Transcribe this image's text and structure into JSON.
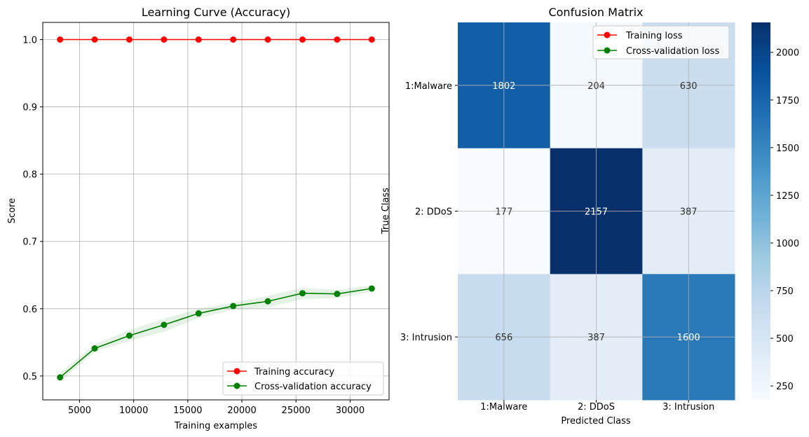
{
  "chart_data": [
    {
      "type": "line",
      "title": "Learning Curve (Accuracy)",
      "xlabel": "Training examples",
      "ylabel": "Score",
      "xlim": [
        1600,
        33600
      ],
      "ylim": [
        0.4645,
        1.0255
      ],
      "x_ticks": [
        5000,
        10000,
        15000,
        20000,
        25000,
        30000
      ],
      "y_ticks": [
        0.5,
        0.6,
        0.7,
        0.8,
        0.9,
        1.0
      ],
      "x_tick_labels": [
        "5000",
        "10000",
        "15000",
        "20000",
        "25000",
        "30000"
      ],
      "y_tick_labels": [
        "0.5",
        "0.6",
        "0.7",
        "0.8",
        "0.9",
        "1.0"
      ],
      "grid": true,
      "legend_position": "bottom-right",
      "x": [
        3200,
        6400,
        9600,
        12800,
        16000,
        19200,
        22400,
        25600,
        28800,
        32000
      ],
      "series": [
        {
          "name": "Training accuracy",
          "color": "#ff0000",
          "values": [
            1.0,
            1.0,
            1.0,
            1.0,
            1.0,
            1.0,
            1.0,
            1.0,
            1.0,
            1.0
          ]
        },
        {
          "name": "Cross-validation accuracy",
          "color": "#008000",
          "values": [
            0.498,
            0.541,
            0.56,
            0.576,
            0.593,
            0.604,
            0.611,
            0.623,
            0.622,
            0.63
          ],
          "band_lower": [
            0.492,
            0.536,
            0.552,
            0.566,
            0.586,
            0.599,
            0.602,
            0.614,
            0.616,
            0.625
          ],
          "band_upper": [
            0.505,
            0.547,
            0.568,
            0.585,
            0.6,
            0.609,
            0.619,
            0.631,
            0.628,
            0.634
          ]
        }
      ]
    },
    {
      "type": "heatmap",
      "title": "Confusion Matrix",
      "xlabel": "Predicted Class",
      "ylabel": "True Class",
      "x_categories": [
        "1:Malware",
        "2: DDoS",
        "3: Intrusion"
      ],
      "y_categories": [
        "1:Malware",
        "2: DDoS",
        "3: Intrusion"
      ],
      "values": [
        [
          1802,
          204,
          630
        ],
        [
          177,
          2157,
          387
        ],
        [
          656,
          387,
          1600
        ]
      ],
      "cell_labels": [
        [
          "1802",
          "204",
          "630"
        ],
        [
          "177",
          "2157",
          "387"
        ],
        [
          "656",
          "387",
          "1600"
        ]
      ],
      "colormap": "Blues",
      "colorbar_range": [
        177,
        2157
      ],
      "colorbar_ticks": [
        250,
        500,
        750,
        1000,
        1250,
        1500,
        1750,
        2000
      ],
      "colorbar_tick_labels": [
        "250",
        "500",
        "750",
        "1000",
        "1250",
        "1500",
        "1750",
        "2000"
      ],
      "grid": true,
      "legend_position": "top-right",
      "legend": [
        {
          "name": "Training loss",
          "color": "#ff0000"
        },
        {
          "name": "Cross-validation loss",
          "color": "#008000"
        }
      ]
    }
  ]
}
